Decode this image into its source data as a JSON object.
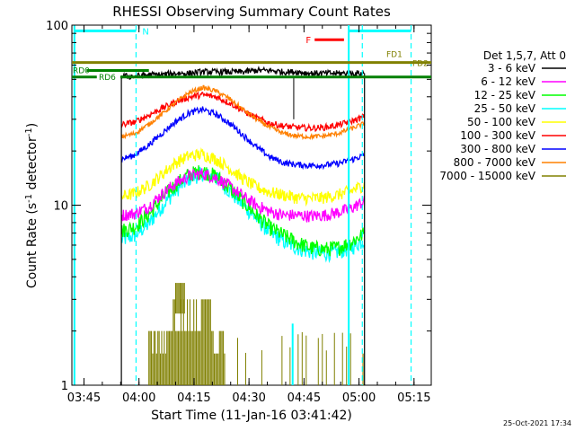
{
  "chart_data": {
    "type": "line",
    "title": "RHESSI Observing Summary Count Rates",
    "xlabel": "Start Time (11-Jan-16 03:41:42)",
    "ylabel_main": "Count Rate (s",
    "ylabel_exp": "-1",
    "ylabel_tail": " detector",
    "ylabel_close": ")",
    "x_unit": "minutes since 03:41:42",
    "xlim": [
      0,
      98
    ],
    "ylim": [
      1,
      100
    ],
    "yscale": "log",
    "x_ticks": [
      {
        "x": 3.3,
        "label": "03:45"
      },
      {
        "x": 18.3,
        "label": "04:00"
      },
      {
        "x": 33.3,
        "label": "04:15"
      },
      {
        "x": 48.3,
        "label": "04:30"
      },
      {
        "x": 63.3,
        "label": "04:45"
      },
      {
        "x": 78.3,
        "label": "05:00"
      },
      {
        "x": 93.3,
        "label": "05:15"
      }
    ],
    "y_ticks": [
      {
        "y": 1,
        "label": "1"
      },
      {
        "y": 10,
        "label": "10"
      },
      {
        "y": 100,
        "label": "100"
      }
    ],
    "legend_header": "Det 1,5,7, Att 0",
    "legend_position": "right",
    "data_start": 13.5,
    "data_end": 79.8,
    "series": [
      {
        "name": "3 - 6 keV",
        "color": "#000000",
        "profile": [
          52,
          52,
          53,
          53,
          54,
          54,
          55,
          55,
          55,
          55,
          56,
          56,
          55,
          55,
          54,
          54,
          54,
          54,
          54
        ],
        "noise": 0.04
      },
      {
        "name": "6 - 12 keV",
        "color": "#ff00ff",
        "profile": [
          8.8,
          9.0,
          9.8,
          11.5,
          13.2,
          14.5,
          15.0,
          14.2,
          12.8,
          11.2,
          10.0,
          9.2,
          8.8,
          8.8,
          8.7,
          8.8,
          9.1,
          9.6,
          10.5
        ],
        "noise": 0.08
      },
      {
        "name": "12 - 25 keV",
        "color": "#00ff00",
        "profile": [
          7.2,
          7.6,
          8.8,
          10.8,
          13.0,
          14.8,
          15.5,
          14.5,
          12.5,
          10.5,
          8.8,
          7.5,
          6.8,
          6.2,
          5.8,
          5.7,
          5.8,
          6.2,
          7.0
        ],
        "noise": 0.1
      },
      {
        "name": "25 - 50 keV",
        "color": "#00ffff",
        "profile": [
          6.4,
          6.8,
          7.8,
          9.8,
          12.0,
          14.0,
          15.0,
          14.2,
          12.0,
          10.0,
          8.4,
          7.0,
          6.3,
          5.8,
          5.5,
          5.4,
          5.5,
          5.8,
          6.4
        ],
        "noise": 0.1
      },
      {
        "name": "50 - 100 keV",
        "color": "#ffff00",
        "profile": [
          11.2,
          11.6,
          12.8,
          14.8,
          17.2,
          18.8,
          19.2,
          18.0,
          16.0,
          14.0,
          12.6,
          11.8,
          11.4,
          11.0,
          10.9,
          11.0,
          11.4,
          12.0,
          13.0
        ],
        "noise": 0.08
      },
      {
        "name": "100 - 300 keV",
        "color": "#ff0000",
        "profile": [
          28.0,
          29.0,
          31.5,
          34.5,
          37.5,
          39.8,
          41.0,
          40.0,
          37.0,
          33.5,
          30.5,
          28.5,
          27.5,
          27.0,
          26.8,
          27.0,
          27.8,
          29.2,
          31.0
        ],
        "noise": 0.04
      },
      {
        "name": "300 - 800 keV",
        "color": "#0000ff",
        "profile": [
          18.0,
          19.0,
          21.5,
          25.0,
          29.0,
          32.5,
          34.0,
          32.0,
          28.5,
          24.5,
          21.0,
          18.5,
          17.2,
          16.8,
          16.6,
          16.7,
          17.0,
          17.8,
          19.0
        ],
        "noise": 0.04
      },
      {
        "name": "800 - 7000 keV",
        "color": "#ff8000",
        "profile": [
          24.0,
          25.0,
          28.0,
          32.0,
          37.0,
          42.0,
          45.0,
          43.0,
          39.0,
          34.0,
          30.0,
          27.0,
          25.0,
          24.2,
          24.0,
          24.2,
          25.0,
          26.5,
          28.5
        ],
        "noise": 0.03
      },
      {
        "name": "7000 - 15000 keV",
        "color": "#808000",
        "profile": [],
        "noise": 0
      }
    ],
    "attenuator_levels": [
      {
        "label": "FD1",
        "y": 62,
        "color": "#808000"
      },
      {
        "label": "FD2",
        "y": 62,
        "color": "#808000"
      },
      {
        "label": "RD0",
        "y": 56,
        "color": "#008000"
      },
      {
        "label": "RD6",
        "y": 51.5,
        "color": "#008000"
      }
    ],
    "flags": [
      {
        "label": "N",
        "color": "#00ffff"
      },
      {
        "label": "F",
        "color": "#ff0000"
      }
    ],
    "footer_timestamp": "25-Oct-2021 17:34"
  }
}
